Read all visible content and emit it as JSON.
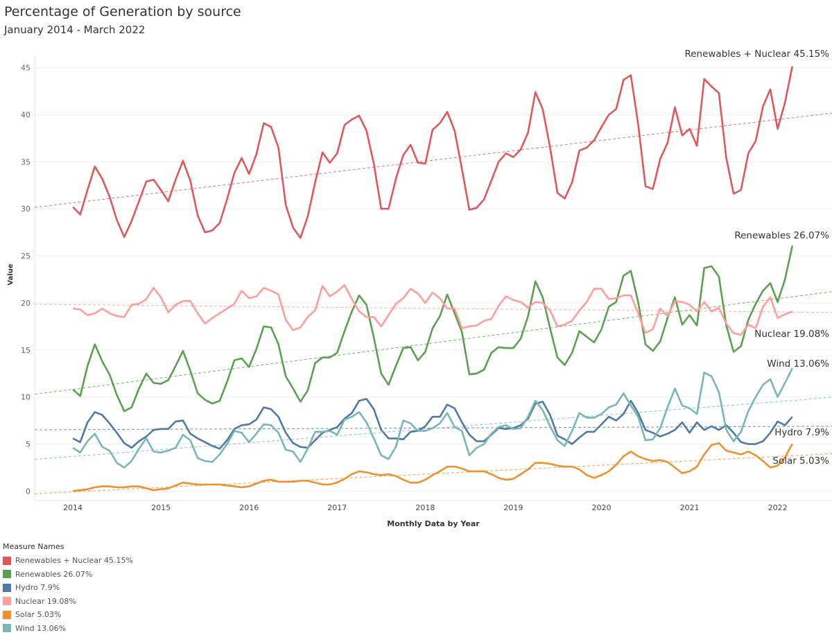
{
  "chart_data": {
    "type": "line",
    "title": "Percentage of Generation by source",
    "subtitle": "January 2014 - March 2022",
    "xlabel": "Monthly Data by Year",
    "ylabel": "Value",
    "x_start": "2014-01",
    "x_end": "2022-03",
    "x_ticks": [
      "2014",
      "2015",
      "2016",
      "2017",
      "2018",
      "2019",
      "2020",
      "2021",
      "2022"
    ],
    "y_ticks": [
      0,
      5,
      10,
      15,
      20,
      25,
      30,
      35,
      40,
      45
    ],
    "ylim": [
      -1,
      46.3
    ],
    "grid": true,
    "trend_lines": true,
    "legend_title": "Measure Names",
    "legend_position": "bottom-left",
    "series": [
      {
        "name": "Renewables + Nuclear 45.15%",
        "color": "#e15759",
        "values": [
          30.2,
          29.4,
          32,
          34.5,
          33.2,
          31.3,
          28.8,
          27.0,
          28.7,
          30.8,
          32.9,
          33.1,
          32,
          30.8,
          33.1,
          35.1,
          33,
          29.3,
          27.5,
          27.7,
          28.5,
          31,
          33.8,
          35.4,
          33.7,
          35.8,
          39.1,
          38.7,
          36.5,
          30.4,
          28,
          26.9,
          29.2,
          32.8,
          36,
          34.9,
          35.9,
          38.9,
          39.5,
          39.9,
          38.3,
          34.8,
          30,
          30,
          33.2,
          35.7,
          36.8,
          34.9,
          34.8,
          38.4,
          39.1,
          40.3,
          38.3,
          34.2,
          29.9,
          30.1,
          31,
          33,
          35,
          35.9,
          35.5,
          36.3,
          38.1,
          42.4,
          40.6,
          36.5,
          31.7,
          31.1,
          32.8,
          36.2,
          36.5,
          37.3,
          38.7,
          40,
          40.6,
          43.7,
          44.2,
          39,
          32.4,
          32.1,
          35.3,
          37,
          40.8,
          37.8,
          38.5,
          36.7,
          43.8,
          43,
          42.3,
          35.4,
          31.6,
          32,
          35.9,
          37.2,
          40.9,
          42.7,
          38.5,
          41.3,
          45.15
        ]
      },
      {
        "name": "Renewables 26.07%",
        "color": "#59a14f",
        "values": [
          10.8,
          10.1,
          13.3,
          15.6,
          13.8,
          12.4,
          10.2,
          8.5,
          8.9,
          10.9,
          12.5,
          11.5,
          11.4,
          11.8,
          13.3,
          14.9,
          12.8,
          10.4,
          9.7,
          9.3,
          9.6,
          11.6,
          13.9,
          14.1,
          13.2,
          15.1,
          17.5,
          17.4,
          15.6,
          12.2,
          10.9,
          9.5,
          10.7,
          13.6,
          14.2,
          14.2,
          14.7,
          17,
          19.1,
          20.8,
          19.8,
          16.3,
          12.5,
          11.3,
          13.3,
          15.2,
          15.3,
          13.9,
          14.8,
          17.3,
          18.6,
          20.9,
          18.9,
          16.9,
          12.4,
          12.5,
          12.9,
          14.7,
          15.3,
          15.2,
          15.2,
          16.2,
          18.6,
          22.3,
          20.6,
          17.3,
          14.2,
          13.4,
          14.7,
          17,
          16.4,
          15.8,
          17.2,
          19.6,
          20.1,
          22.9,
          23.4,
          20.1,
          15.6,
          14.9,
          15.9,
          18.4,
          20.6,
          17.7,
          18.7,
          17.6,
          23.7,
          23.9,
          22.8,
          17.6,
          14.8,
          15.4,
          18.2,
          19.9,
          21.3,
          22.1,
          20.1,
          22.5,
          26.07
        ]
      },
      {
        "name": "Hydro 7.9%",
        "color": "#4e79a7",
        "values": [
          5.6,
          5.2,
          7.3,
          8.4,
          8.1,
          7.2,
          6.2,
          5.1,
          4.6,
          5.3,
          5.8,
          6.5,
          6.6,
          6.6,
          7.4,
          7.5,
          6.1,
          5.6,
          5.2,
          4.8,
          4.5,
          5.4,
          6.6,
          7.0,
          7.1,
          7.6,
          8.9,
          8.7,
          7.9,
          6.2,
          5.1,
          4.7,
          4.6,
          5.4,
          6.2,
          6.5,
          6.8,
          7.7,
          8.3,
          9.6,
          9.8,
          8.7,
          6.5,
          5.6,
          5.6,
          5.5,
          6.3,
          6.4,
          6.9,
          7.9,
          7.9,
          9.2,
          8.8,
          7.3,
          6.0,
          5.3,
          5.3,
          6.0,
          6.7,
          6.6,
          6.7,
          7.0,
          7.7,
          9.3,
          9.5,
          8.1,
          5.9,
          5.5,
          5.0,
          5.7,
          6.3,
          6.3,
          7.1,
          7.9,
          7.5,
          8.2,
          9.6,
          8.3,
          6.5,
          6.2,
          5.8,
          6.1,
          6.5,
          7.3,
          6.2,
          7.3,
          6.5,
          6.9,
          6.5,
          7.0,
          6.2,
          5.2,
          5.0,
          5.0,
          5.3,
          6.2,
          7.4,
          7.0,
          7.9
        ]
      },
      {
        "name": "Nuclear 19.08%",
        "color": "#ff9d9a",
        "values": [
          19.4,
          19.3,
          18.7,
          18.9,
          19.4,
          18.9,
          18.6,
          18.5,
          19.8,
          19.9,
          20.4,
          21.6,
          20.6,
          19.0,
          19.8,
          20.2,
          20.2,
          18.9,
          17.8,
          18.4,
          18.9,
          19.4,
          19.9,
          21.3,
          20.5,
          20.7,
          21.6,
          21.3,
          20.9,
          18.2,
          17.1,
          17.4,
          18.5,
          19.2,
          21.8,
          20.7,
          21.2,
          21.9,
          20.4,
          19.1,
          18.5,
          18.5,
          17.5,
          18.7,
          19.9,
          20.5,
          21.5,
          21.0,
          20.0,
          21.1,
          20.5,
          19.4,
          19.4,
          17.3,
          17.5,
          17.6,
          18.1,
          18.3,
          19.7,
          20.7,
          20.3,
          20.1,
          19.5,
          20.1,
          20.0,
          19.2,
          17.5,
          17.7,
          18.1,
          19.2,
          20.1,
          21.5,
          21.5,
          20.4,
          20.5,
          20.8,
          20.8,
          18.9,
          16.8,
          17.2,
          19.4,
          18.6,
          20.2,
          20.1,
          19.8,
          19.1,
          20.1,
          19.1,
          19.5,
          17.8,
          16.8,
          16.6,
          17.7,
          17.3,
          19.6,
          20.6,
          18.4,
          18.8,
          19.08
        ]
      },
      {
        "name": "Solar 5.03%",
        "color": "#f28e2b",
        "values": [
          0,
          0.1,
          0.2,
          0.4,
          0.5,
          0.5,
          0.4,
          0.4,
          0.5,
          0.5,
          0.3,
          0.1,
          0.2,
          0.3,
          0.6,
          0.9,
          0.8,
          0.7,
          0.7,
          0.7,
          0.7,
          0.6,
          0.5,
          0.4,
          0.5,
          0.8,
          1.1,
          1.2,
          1.0,
          1.0,
          1.0,
          1.1,
          1.1,
          0.9,
          0.7,
          0.7,
          0.9,
          1.3,
          1.8,
          2.1,
          2.0,
          1.8,
          1.7,
          1.8,
          1.6,
          1.2,
          0.9,
          0.9,
          1.2,
          1.7,
          2.1,
          2.6,
          2.6,
          2.4,
          2.1,
          2.1,
          2.1,
          1.8,
          1.4,
          1.2,
          1.3,
          1.8,
          2.3,
          3.0,
          3.0,
          2.9,
          2.7,
          2.6,
          2.6,
          2.3,
          1.7,
          1.4,
          1.7,
          2.1,
          2.8,
          3.7,
          4.2,
          3.7,
          3.4,
          3.2,
          3.3,
          3.1,
          2.5,
          1.9,
          2.1,
          2.6,
          3.9,
          4.9,
          5.1,
          4.3,
          4.1,
          3.9,
          4.2,
          3.8,
          3.2,
          2.5,
          2.7,
          3.6,
          5.03
        ]
      },
      {
        "name": "Wind 13.06%",
        "color": "#76b7b2",
        "values": [
          4.6,
          4.1,
          5.3,
          6.1,
          4.7,
          4.3,
          3.0,
          2.5,
          3.2,
          4.5,
          5.6,
          4.2,
          4.1,
          4.3,
          4.6,
          6.0,
          5.4,
          3.5,
          3.2,
          3.1,
          3.9,
          5.0,
          6.4,
          6.2,
          5.2,
          6.1,
          7.1,
          7.0,
          6.2,
          4.4,
          4.2,
          3.1,
          4.5,
          6.3,
          6.3,
          6.4,
          6.0,
          7.6,
          7.9,
          8.4,
          7.3,
          5.6,
          3.8,
          3.4,
          4.7,
          7.5,
          7.2,
          6.4,
          6.4,
          6.7,
          7.2,
          8.3,
          6.8,
          6.4,
          3.8,
          4.6,
          5.0,
          6.1,
          6.8,
          7.0,
          6.6,
          6.7,
          7.9,
          9.6,
          8.6,
          6.9,
          5.4,
          4.8,
          6.4,
          8.3,
          7.8,
          7.8,
          8.2,
          8.9,
          9.2,
          10.4,
          9.1,
          7.9,
          5.4,
          5.5,
          6.7,
          8.9,
          10.9,
          9.1,
          8.8,
          8.2,
          12.6,
          12.2,
          10.5,
          6.5,
          5.3,
          6.3,
          8.5,
          10.0,
          11.3,
          11.9,
          10.0,
          11.5,
          13.06
        ]
      }
    ]
  }
}
